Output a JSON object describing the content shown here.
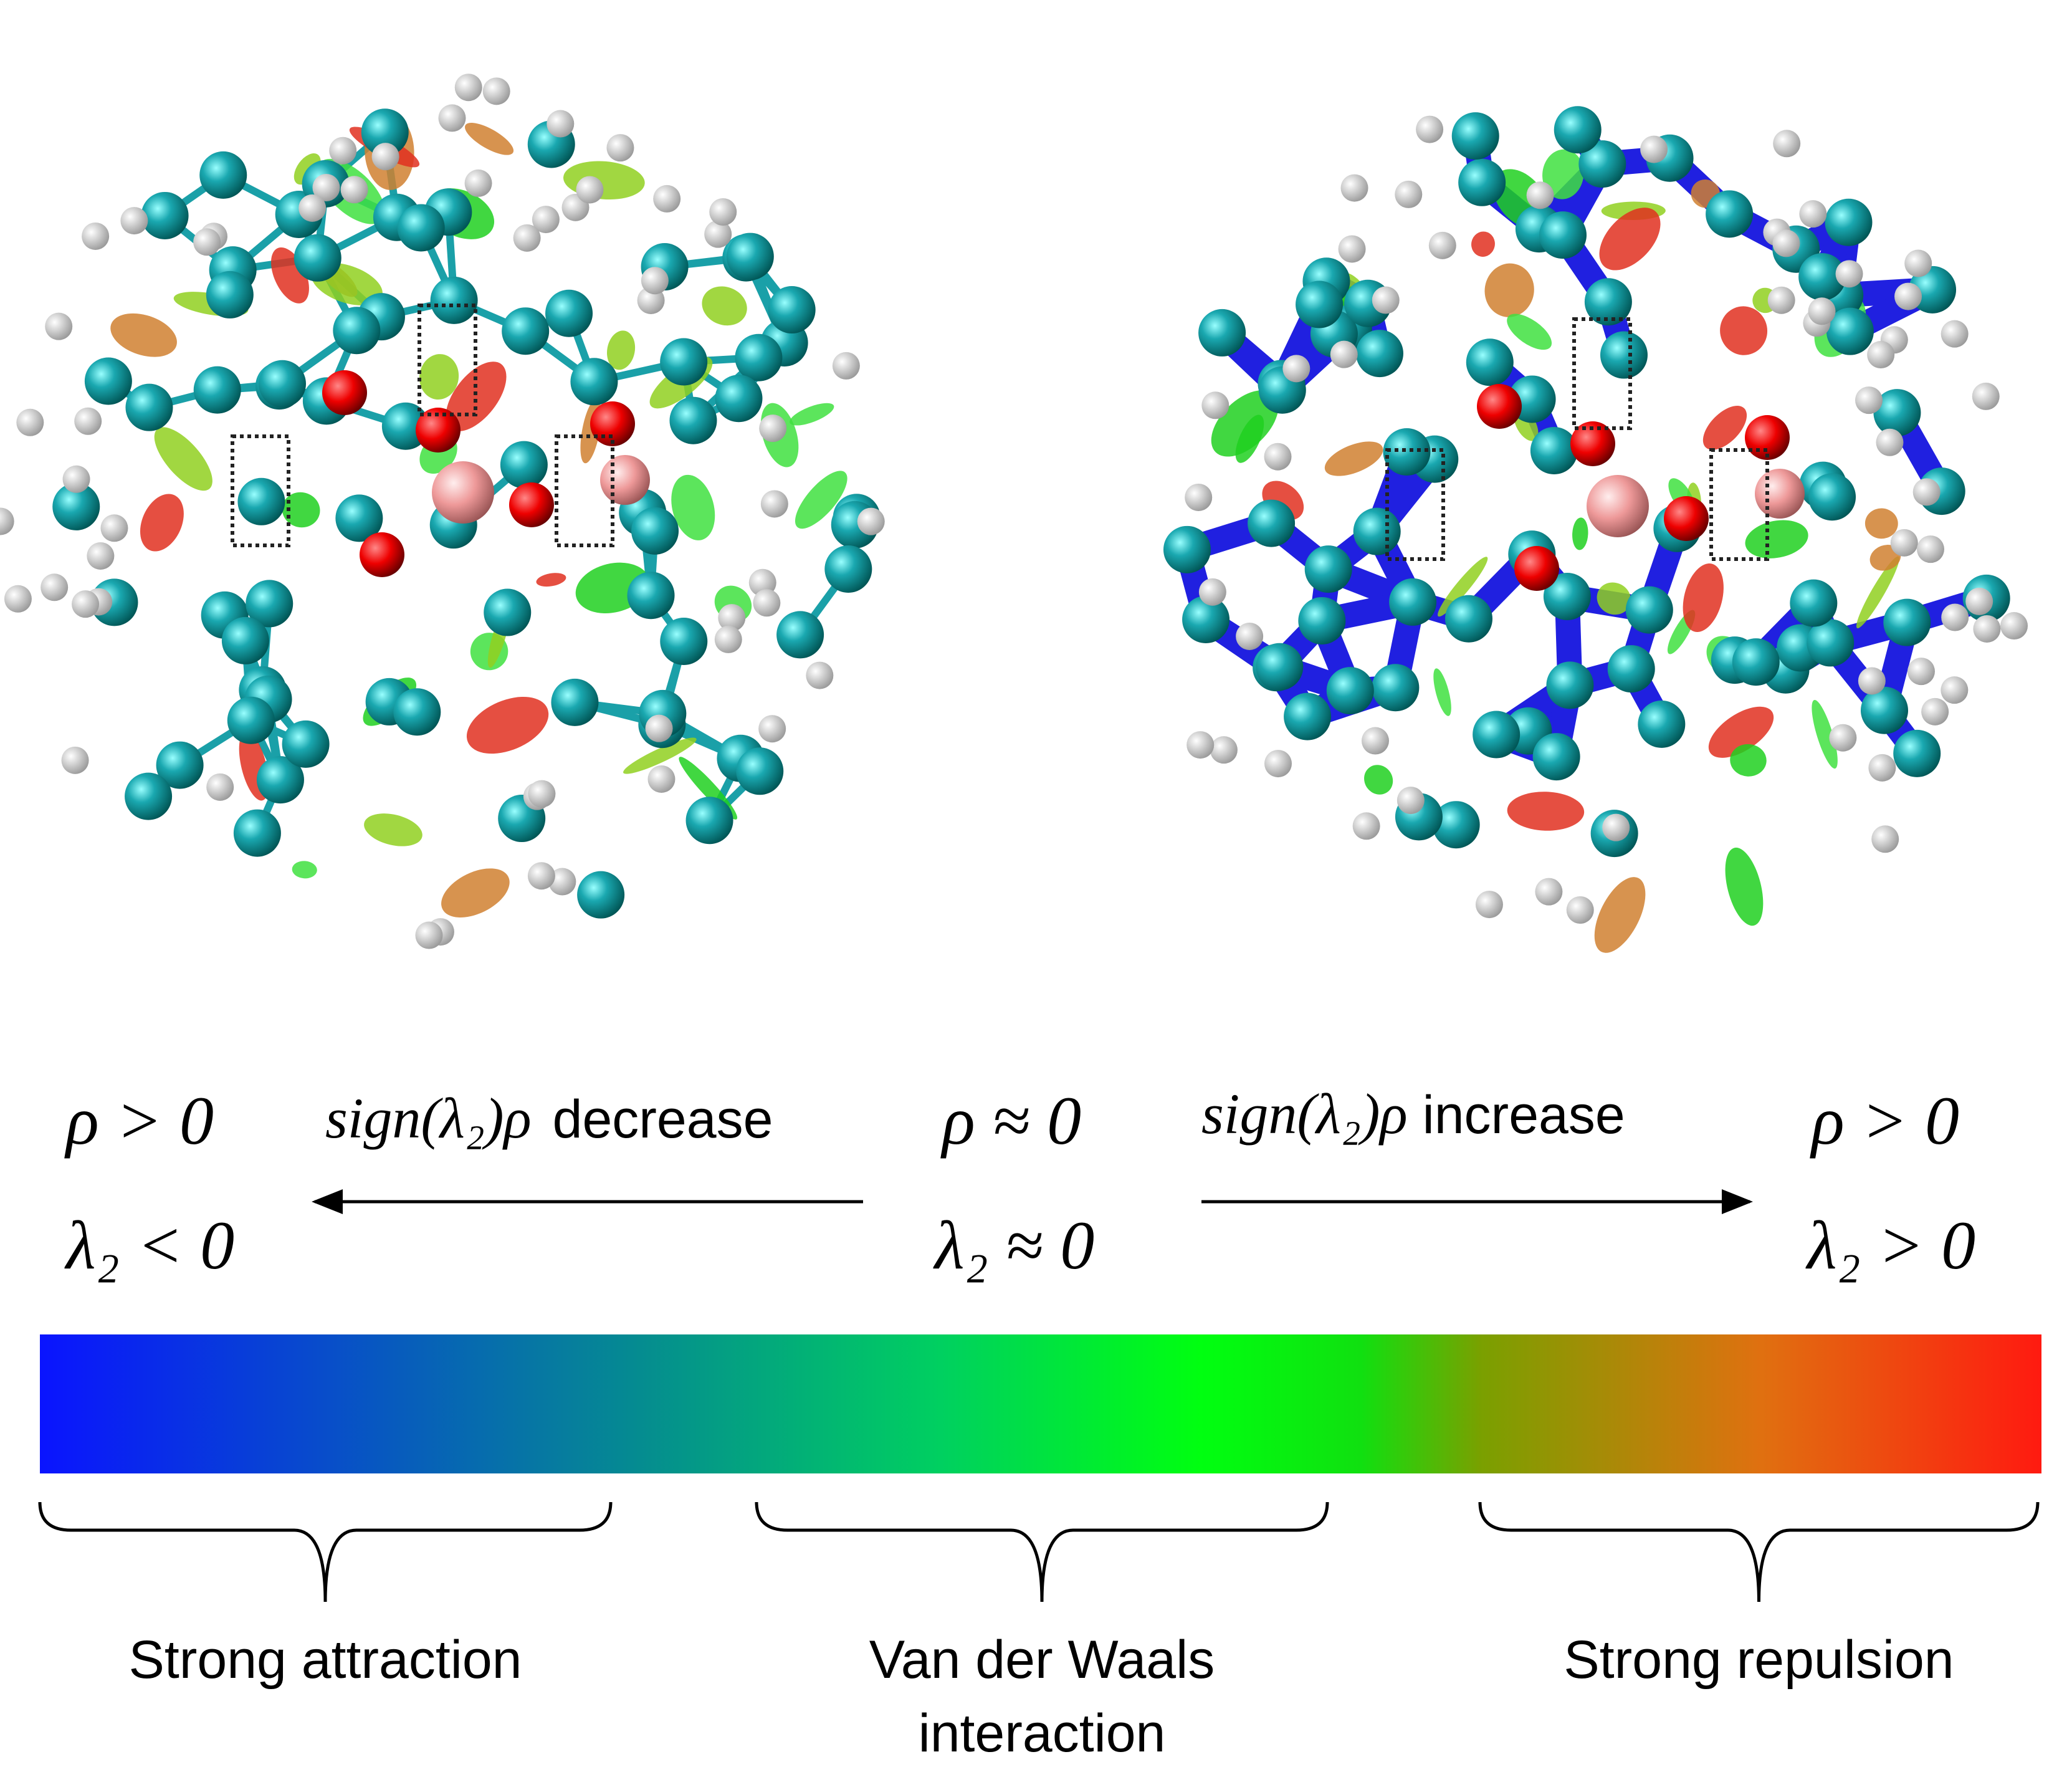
{
  "conditions": [
    {
      "rho": "ρ > 0",
      "lambda": "λ₂ < 0"
    },
    {
      "rho": "ρ ≈ 0",
      "lambda": "λ₂ ≈ 0"
    },
    {
      "rho": "ρ > 0",
      "lambda": "λ₂ > 0"
    }
  ],
  "arrows": [
    {
      "expression": "sign(λ₂)ρ",
      "direction": "decrease"
    },
    {
      "expression": "sign(λ₂)ρ",
      "direction": "increase"
    }
  ],
  "regions": [
    {
      "lines": [
        "Strong attraction"
      ]
    },
    {
      "lines": [
        "Van der Waals",
        "interaction"
      ]
    },
    {
      "lines": [
        "Strong repulsion"
      ]
    }
  ]
}
